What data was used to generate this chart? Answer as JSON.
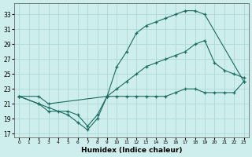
{
  "xlabel": "Humidex (Indice chaleur)",
  "bg_color": "#ceeeed",
  "grid_color": "#aed8d6",
  "line_color": "#1a6b60",
  "xlim": [
    -0.5,
    23.5
  ],
  "ylim": [
    16.5,
    34.5
  ],
  "xticks": [
    0,
    1,
    2,
    3,
    4,
    5,
    6,
    7,
    8,
    9,
    10,
    11,
    12,
    13,
    14,
    15,
    16,
    17,
    18,
    19,
    20,
    21,
    22,
    23
  ],
  "yticks": [
    17,
    19,
    21,
    23,
    25,
    27,
    29,
    31,
    33
  ],
  "curve1_x": [
    0,
    2,
    3,
    5,
    6,
    7,
    8,
    9,
    10,
    11,
    12,
    13,
    14,
    15,
    16,
    17,
    18,
    19,
    23
  ],
  "curve1_y": [
    22,
    21,
    20,
    20,
    19.5,
    18,
    19.5,
    22,
    26,
    28,
    30.5,
    31.5,
    32,
    32.5,
    33,
    33.5,
    33.5,
    33,
    24
  ],
  "curve2_x": [
    0,
    2,
    3,
    9,
    10,
    11,
    12,
    13,
    14,
    15,
    16,
    17,
    18,
    19,
    20,
    21,
    22,
    23
  ],
  "curve2_y": [
    22,
    22,
    21,
    22,
    23,
    24,
    25,
    26,
    26.5,
    27,
    27.5,
    28,
    29,
    29.5,
    26.5,
    25.5,
    25,
    24.5
  ],
  "curve3_x": [
    0,
    2,
    3,
    4,
    5,
    6,
    7,
    8,
    9,
    10,
    11,
    12,
    13,
    14,
    15,
    16,
    17,
    18,
    19,
    20,
    21,
    22,
    23
  ],
  "curve3_y": [
    22,
    21,
    20.5,
    20,
    19.5,
    18.5,
    17.5,
    19,
    22,
    22,
    22,
    22,
    22,
    22,
    22,
    22.5,
    23,
    23,
    22.5,
    22.5,
    22.5,
    22.5,
    24
  ]
}
